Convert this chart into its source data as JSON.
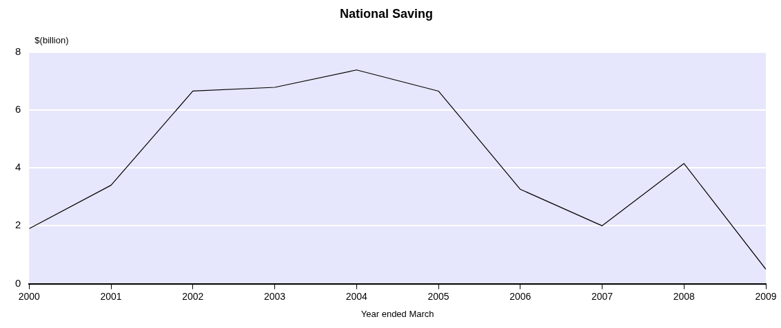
{
  "chart_data": {
    "type": "line",
    "title": "National Saving",
    "xlabel": "Year ended March",
    "ylabel": "$(billion)",
    "x": [
      2000,
      2001,
      2002,
      2003,
      2004,
      2005,
      2006,
      2007,
      2008,
      2009
    ],
    "series": [
      {
        "color": "#000000",
        "values": [
          1.9,
          3.4,
          6.65,
          6.78,
          7.38,
          6.65,
          3.26,
          2.0,
          4.15,
          0.5
        ]
      }
    ],
    "xlim": [
      2000,
      2009
    ],
    "xticks": [
      2000,
      2001,
      2002,
      2003,
      2004,
      2005,
      2006,
      2007,
      2008,
      2009
    ],
    "ylim": [
      0,
      8
    ],
    "yticks": [
      0,
      2,
      4,
      6,
      8
    ],
    "grid": "y",
    "legend": false,
    "marker": "none",
    "line_style": "solid"
  }
}
